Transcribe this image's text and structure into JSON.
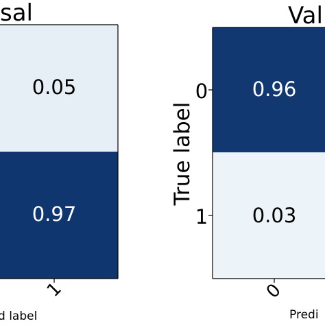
{
  "chart_data": [
    {
      "type": "heatmap",
      "title": "sal",
      "xlabel": "d label",
      "ylabel": "",
      "x_tick_labels": [
        "1"
      ],
      "y_tick_labels": [],
      "cells": [
        {
          "row": 0,
          "col": 1,
          "value": 0.05,
          "label": "0.05"
        },
        {
          "row": 1,
          "col": 1,
          "value": 0.97,
          "label": "0.97"
        }
      ],
      "colormap": "Blues",
      "colors": {
        "low": "#f3f9fd",
        "high": "#08306b",
        "text_on_low": "#000000",
        "text_on_high": "#ffffff"
      }
    },
    {
      "type": "heatmap",
      "title": "Val",
      "xlabel": "Predi",
      "ylabel": "True label",
      "x_tick_labels": [
        "0"
      ],
      "y_tick_labels": [
        "0",
        "1"
      ],
      "cells": [
        {
          "row": 0,
          "col": 0,
          "value": 0.96,
          "label": "0.96"
        },
        {
          "row": 1,
          "col": 0,
          "value": 0.03,
          "label": "0.03"
        }
      ],
      "colormap": "Blues",
      "colors": {
        "low": "#f3f9fd",
        "high": "#08306b",
        "text_on_low": "#000000",
        "text_on_high": "#ffffff"
      }
    }
  ]
}
